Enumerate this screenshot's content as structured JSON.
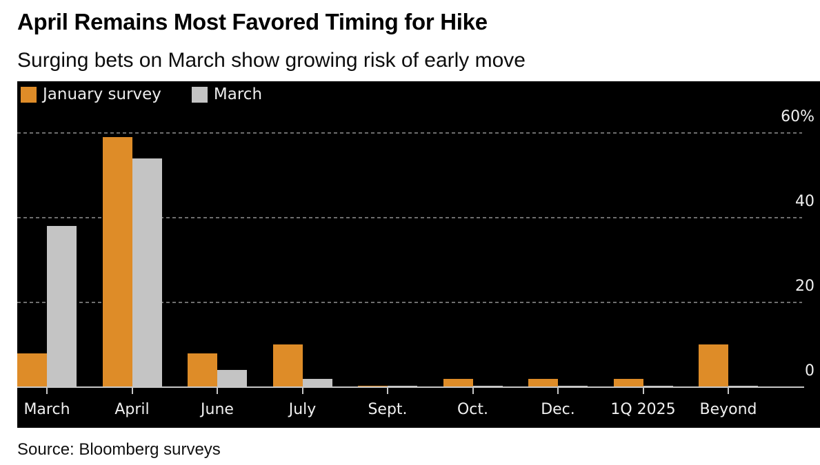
{
  "header": {
    "title": "April Remains Most Favored Timing for Hike",
    "subtitle": "Surging bets on March show growing risk of early move"
  },
  "legend": {
    "items": [
      {
        "label": "January survey",
        "color": "#de8c28"
      },
      {
        "label": "March",
        "color": "#c4c4c4"
      }
    ]
  },
  "source": "Source: Bloomberg surveys",
  "chart_data": {
    "type": "bar",
    "title": "April Remains Most Favored Timing for Hike",
    "subtitle": "Surging bets on March show growing risk of early move",
    "categories": [
      "March",
      "April",
      "June",
      "July",
      "Sept.",
      "Oct.",
      "Dec.",
      "1Q 2025",
      "Beyond"
    ],
    "series": [
      {
        "name": "January survey",
        "color": "#de8c28",
        "values": [
          8,
          59,
          8,
          10,
          0.3,
          2,
          2,
          2,
          10
        ]
      },
      {
        "name": "March",
        "color": "#c4c4c4",
        "values": [
          38,
          54,
          4,
          2,
          0.3,
          0.3,
          0.3,
          0.3,
          0.3
        ]
      }
    ],
    "xlabel": "",
    "ylabel": "",
    "ylim": [
      0,
      62
    ],
    "y_ticks": [
      60,
      40,
      20,
      0
    ],
    "y_tick_labels": [
      "60%",
      "40",
      "20",
      "0"
    ],
    "grid": "horizontal-dashed",
    "legend_position": "top-left-inside",
    "plot_background": "#000000",
    "gridline_color": "#6e6e6e",
    "axis_line_color": "#c8c8c8",
    "tick_label_color": "#f0f0f0",
    "source": "Source: Bloomberg surveys"
  }
}
